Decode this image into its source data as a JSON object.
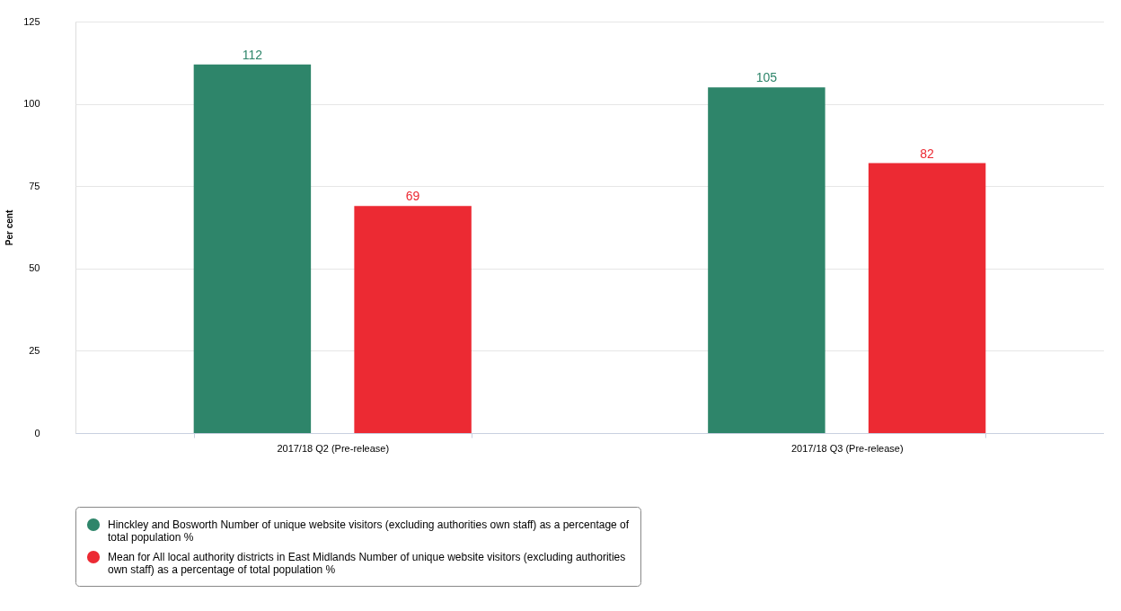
{
  "chart_data": {
    "type": "bar",
    "ylabel": "Per cent",
    "categories": [
      "2017/18 Q2 (Pre-release)",
      "2017/18 Q3 (Pre-release)"
    ],
    "series": [
      {
        "name": "Hinckley and Bosworth Number of unique website visitors (excluding authorities own staff) as a percentage of total population %",
        "color": "#2e856a",
        "values": [
          112,
          105
        ]
      },
      {
        "name": "Mean for All local authority districts in East Midlands Number of unique website visitors (excluding authorities own staff) as a percentage of total population %",
        "color": "#ec2a33",
        "values": [
          69,
          82
        ]
      }
    ],
    "ylim": [
      0,
      125
    ],
    "yticks": [
      0,
      25,
      50,
      75,
      100,
      125
    ],
    "grid": "y",
    "legend": "bottom",
    "data_labels": true
  }
}
